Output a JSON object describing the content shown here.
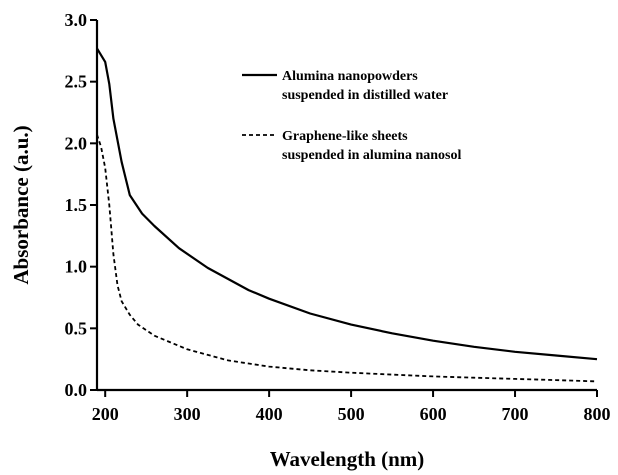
{
  "chart_data": {
    "type": "line",
    "xlabel": "Wavelength (nm)",
    "ylabel": "Absorbance (a.u.)",
    "xlim": [
      190,
      800
    ],
    "ylim": [
      0.0,
      3.0
    ],
    "grid": false,
    "legend_position": "top-right",
    "x_ticks": [
      "200",
      "300",
      "400",
      "500",
      "600",
      "700",
      "800"
    ],
    "y_ticks": [
      "0.0",
      "0.5",
      "1.0",
      "1.5",
      "2.0",
      "2.5",
      "3.0"
    ],
    "series": [
      {
        "name_lines": [
          "Alumina nanopowders",
          "suspended in distilled water"
        ],
        "style": "solid",
        "color": "#000000",
        "x": [
          190,
          200,
          205,
          210,
          220,
          230,
          245,
          260,
          290,
          325,
          375,
          400,
          450,
          500,
          550,
          600,
          650,
          700,
          750,
          800
        ],
        "y": [
          2.77,
          2.66,
          2.48,
          2.2,
          1.85,
          1.58,
          1.43,
          1.33,
          1.15,
          0.99,
          0.81,
          0.74,
          0.62,
          0.53,
          0.46,
          0.4,
          0.35,
          0.31,
          0.28,
          0.25
        ]
      },
      {
        "name_lines": [
          "Graphene-like sheets",
          "suspended in alumina nanosol"
        ],
        "style": "dashed",
        "color": "#000000",
        "x": [
          190,
          195,
          200,
          205,
          210,
          215,
          220,
          230,
          240,
          260,
          300,
          350,
          400,
          450,
          500,
          550,
          600,
          650,
          700,
          750,
          800
        ],
        "y": [
          2.07,
          1.97,
          1.8,
          1.5,
          1.1,
          0.85,
          0.72,
          0.61,
          0.53,
          0.44,
          0.33,
          0.24,
          0.19,
          0.16,
          0.14,
          0.125,
          0.11,
          0.1,
          0.09,
          0.08,
          0.07
        ]
      }
    ]
  }
}
